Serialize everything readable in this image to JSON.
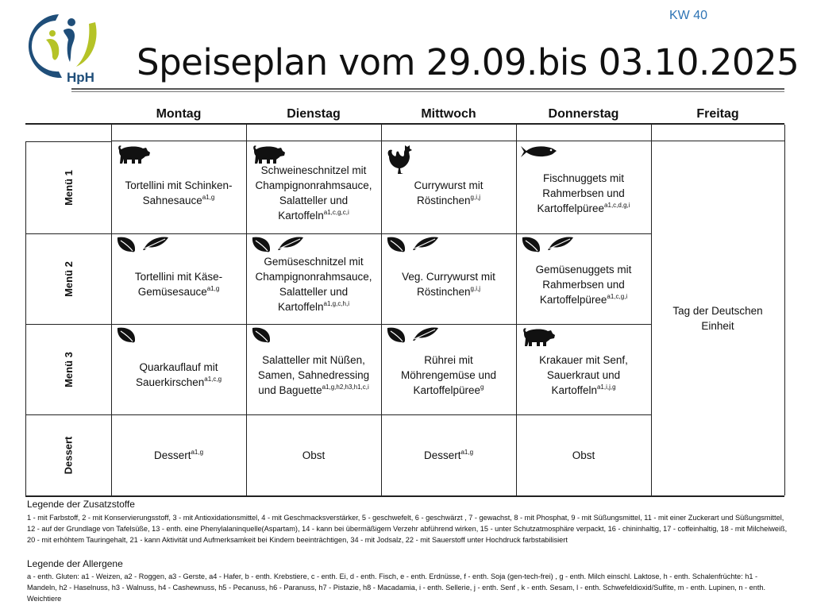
{
  "header": {
    "week": "KW 40",
    "title": "Speiseplan vom 29.09.bis 03.10.2025",
    "logo_text": "HpH",
    "colors": {
      "logo_blue": "#1f4e79",
      "logo_green": "#b5c327",
      "week_blue": "#2e74b5"
    }
  },
  "days": [
    "Montag",
    "Dienstag",
    "Mittwoch",
    "Donnerstag",
    "Freitag"
  ],
  "rows": [
    {
      "label": "Menü 1",
      "cells": [
        {
          "icons": [
            "pig"
          ],
          "text": "Tortellini mit Schinken-Sahnesauce",
          "sup": "a1,g"
        },
        {
          "icons": [
            "pig"
          ],
          "text": "Schweineschnitzel mit Champignonrahmsauce, Salatteller und Kartoffeln",
          "sup": "a1,c,g,c,i"
        },
        {
          "icons": [
            "rooster"
          ],
          "text": "Currywurst mit Röstinchen",
          "sup": "g,i,j"
        },
        {
          "icons": [
            "fish"
          ],
          "text": "Fischnuggets mit Rahmerbsen und Kartoffelpüree",
          "sup": "a1,c,d,g,i"
        }
      ]
    },
    {
      "label": "Menü 2",
      "cells": [
        {
          "icons": [
            "leaf",
            "feather"
          ],
          "text": "Tortellini mit Käse-Gemüsesauce",
          "sup": "a1,g"
        },
        {
          "icons": [
            "leaf",
            "feather"
          ],
          "text": "Gemüseschnitzel mit Champignonrahmsauce, Salatteller und Kartoffeln",
          "sup": "a1,g,c,h,i"
        },
        {
          "icons": [
            "leaf",
            "feather"
          ],
          "text": "Veg. Currywurst mit Röstinchen",
          "sup": "g,i,j"
        },
        {
          "icons": [
            "leaf",
            "feather"
          ],
          "text": "Gemüsenuggets mit Rahmerbsen und Kartoffelpüree",
          "sup": "a1,c,g,i"
        }
      ]
    },
    {
      "label": "Menü 3",
      "cells": [
        {
          "icons": [
            "leaf"
          ],
          "text": "Quarkauflauf mit Sauerkirschen",
          "sup": "a1,c,g"
        },
        {
          "icons": [
            "leaf"
          ],
          "text": "Salatteller mit Nüßen, Samen, Sahnedressing und Baguette",
          "sup": "a1,g,h2,h3,h1,c,i"
        },
        {
          "icons": [
            "leaf",
            "feather"
          ],
          "text": "Rührei mit Möhrengemüse und Kartoffelpüree",
          "sup": "g"
        },
        {
          "icons": [
            "pig"
          ],
          "text": "Krakauer mit Senf, Sauerkraut und Kartoffeln",
          "sup": "a1,i,j,g"
        }
      ]
    },
    {
      "label": "Dessert",
      "cells": [
        {
          "icons": [],
          "text": "Dessert",
          "sup": "a1,g"
        },
        {
          "icons": [],
          "text": "Obst",
          "sup": ""
        },
        {
          "icons": [],
          "text": "Dessert",
          "sup": "a1,g"
        },
        {
          "icons": [],
          "text": "Obst",
          "sup": ""
        }
      ]
    }
  ],
  "friday_note": "Tag der Deutschen Einheit",
  "legend": {
    "additives_title": "Legende der Zusatzstoffe",
    "additives_text": "1 - mit Farbstoff, 2 - mit Konservierungsstoff, 3 - mit Antioxidationsmittel, 4 - mit Geschmacksverstärker, 5 - geschwefelt, 6 - geschwärzt , 7 - gewachst, 8 - mit Phosphat, 9 - mit Süßungsmittel, 11 - mit einer Zuckerart und Süßungsmittel, 12 - auf der Grundlage von Tafelsüße, 13 - enth. eine Phenylalaninquelle(Aspartam), 14 - kann bei übermäßigem Verzehr abführend wirken, 15 - unter Schutzatmosphäre verpackt, 16 - chininhaltig, 17 - coffeinhaltig, 18 - mit Milcheiweiß, 20 - mit erhöhtem Tauringehalt, 21 - kann Aktivität und Aufmerksamkeit bei Kindern beeinträchtigen, 34 - mit Jodsalz, 22 - mit Sauerstoff unter Hochdruck farbstabilisiert",
    "allergens_title": "Legende der Allergene",
    "allergens_text": "a - enth. Gluten: a1 - Weizen, a2 - Roggen, a3 - Gerste, a4 - Hafer, b - enth. Krebstiere, c - enth. Ei, d - enth. Fisch, e - enth. Erdnüsse, f - enth. Soja (gen-tech-frei) , g - enth. Milch einschl. Laktose, h - enth. Schalenfrüchte: h1 - Mandeln, h2 - Haselnuss, h3 - Walnuss, h4 - Cashewnuss, h5 - Pecanuss, h6 - Paranuss, h7 - Pistazie, h8 - Macadamia, i - enth. Sellerie, j - enth. Senf , k - enth. Sesam, l - enth. Schwefeldioxid/Sulfite, m - enth. Lupinen, n - enth. Weichtiere"
  }
}
